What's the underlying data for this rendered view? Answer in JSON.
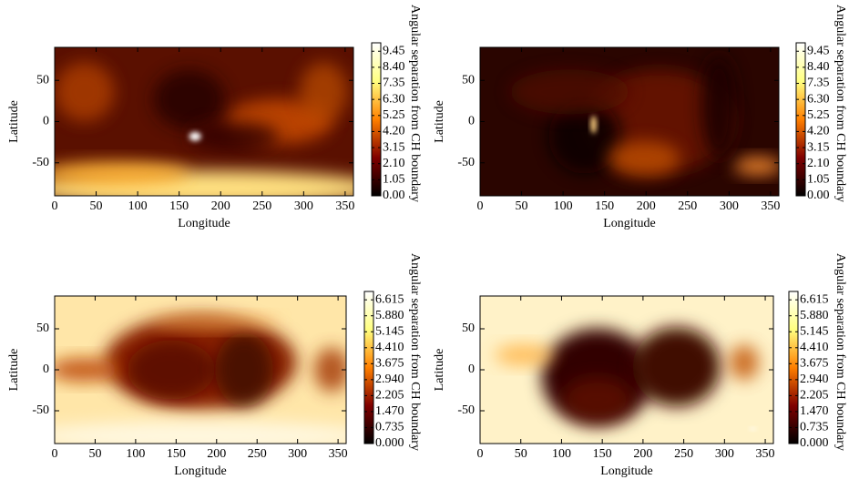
{
  "chart_data": [
    {
      "type": "heatmap",
      "xlabel": "Longitude",
      "ylabel": "Latitude",
      "xlim": [
        0,
        360
      ],
      "ylim": [
        -90,
        90
      ],
      "xticks": [
        0,
        50,
        100,
        150,
        200,
        250,
        300,
        350
      ],
      "yticks": [
        -50,
        0,
        50
      ],
      "colormap": [
        "#000000",
        "#800000",
        "#ff8000",
        "#ffff80",
        "#ffffff"
      ],
      "colorbar": {
        "label": "Angular separation from CH boundary",
        "lim": [
          0,
          10
        ],
        "ticks": [
          {
            "value": 0,
            "label": "0.00"
          },
          1.05,
          {
            "value": 2.1,
            "label": "2.10"
          },
          3.15,
          {
            "value": 4.2,
            "label": "4.20"
          },
          5.25,
          {
            "value": 6.3,
            "label": "6.30"
          },
          7.35,
          {
            "value": 8.4,
            "label": "8.40"
          },
          9.45
        ]
      }
    },
    {
      "type": "heatmap",
      "xlabel": "Longitude",
      "ylabel": "Latitude",
      "xlim": [
        0,
        360
      ],
      "ylim": [
        -90,
        90
      ],
      "xticks": [
        0,
        50,
        100,
        150,
        200,
        250,
        300,
        350
      ],
      "yticks": [
        -50,
        0,
        50
      ],
      "colormap": [
        "#000000",
        "#800000",
        "#ff8000",
        "#ffff80",
        "#ffffff"
      ],
      "colorbar": {
        "label": "Angular separation from CH boundary",
        "lim": [
          0,
          10
        ],
        "ticks": [
          {
            "value": 0,
            "label": "0.00"
          },
          1.05,
          {
            "value": 2.1,
            "label": "2.10"
          },
          3.15,
          {
            "value": 4.2,
            "label": "4.20"
          },
          5.25,
          {
            "value": 6.3,
            "label": "6.30"
          },
          7.35,
          {
            "value": 8.4,
            "label": "8.40"
          },
          9.45
        ]
      }
    },
    {
      "type": "heatmap",
      "xlabel": "Longitude",
      "ylabel": "Latitude",
      "xlim": [
        0,
        360
      ],
      "ylim": [
        -90,
        90
      ],
      "xticks": [
        0,
        50,
        100,
        150,
        200,
        250,
        300,
        350
      ],
      "yticks": [
        -50,
        0,
        50
      ],
      "colormap": [
        "#000000",
        "#800000",
        "#ff8000",
        "#ffff80",
        "#ffffff"
      ],
      "colorbar": {
        "label": "Angular separation from CH boundary",
        "lim": [
          0,
          7
        ],
        "ticks": [
          {
            "value": 0,
            "label": "0.000"
          },
          0.735,
          {
            "value": 1.47,
            "label": "1.470"
          },
          2.205,
          {
            "value": 2.94,
            "label": "2.940"
          },
          3.675,
          {
            "value": 4.41,
            "label": "4.410"
          },
          5.145,
          {
            "value": 5.88,
            "label": "5.880"
          },
          6.615
        ]
      }
    },
    {
      "type": "heatmap",
      "xlabel": "Longitude",
      "ylabel": "Latitude",
      "xlim": [
        0,
        360
      ],
      "ylim": [
        -90,
        90
      ],
      "xticks": [
        0,
        50,
        100,
        150,
        200,
        250,
        300,
        350
      ],
      "yticks": [
        -50,
        0,
        50
      ],
      "colormap": [
        "#000000",
        "#800000",
        "#ff8000",
        "#ffff80",
        "#ffffff"
      ],
      "colorbar": {
        "label": "Angular separation from CH boundary",
        "lim": [
          0,
          7
        ],
        "ticks": [
          {
            "value": 0,
            "label": "0.000"
          },
          0.735,
          {
            "value": 1.47,
            "label": "1.470"
          },
          2.205,
          {
            "value": 2.94,
            "label": "2.940"
          },
          3.675,
          {
            "value": 4.41,
            "label": "4.410"
          },
          5.145,
          {
            "value": 5.88,
            "label": "5.880"
          },
          6.615
        ]
      }
    }
  ]
}
